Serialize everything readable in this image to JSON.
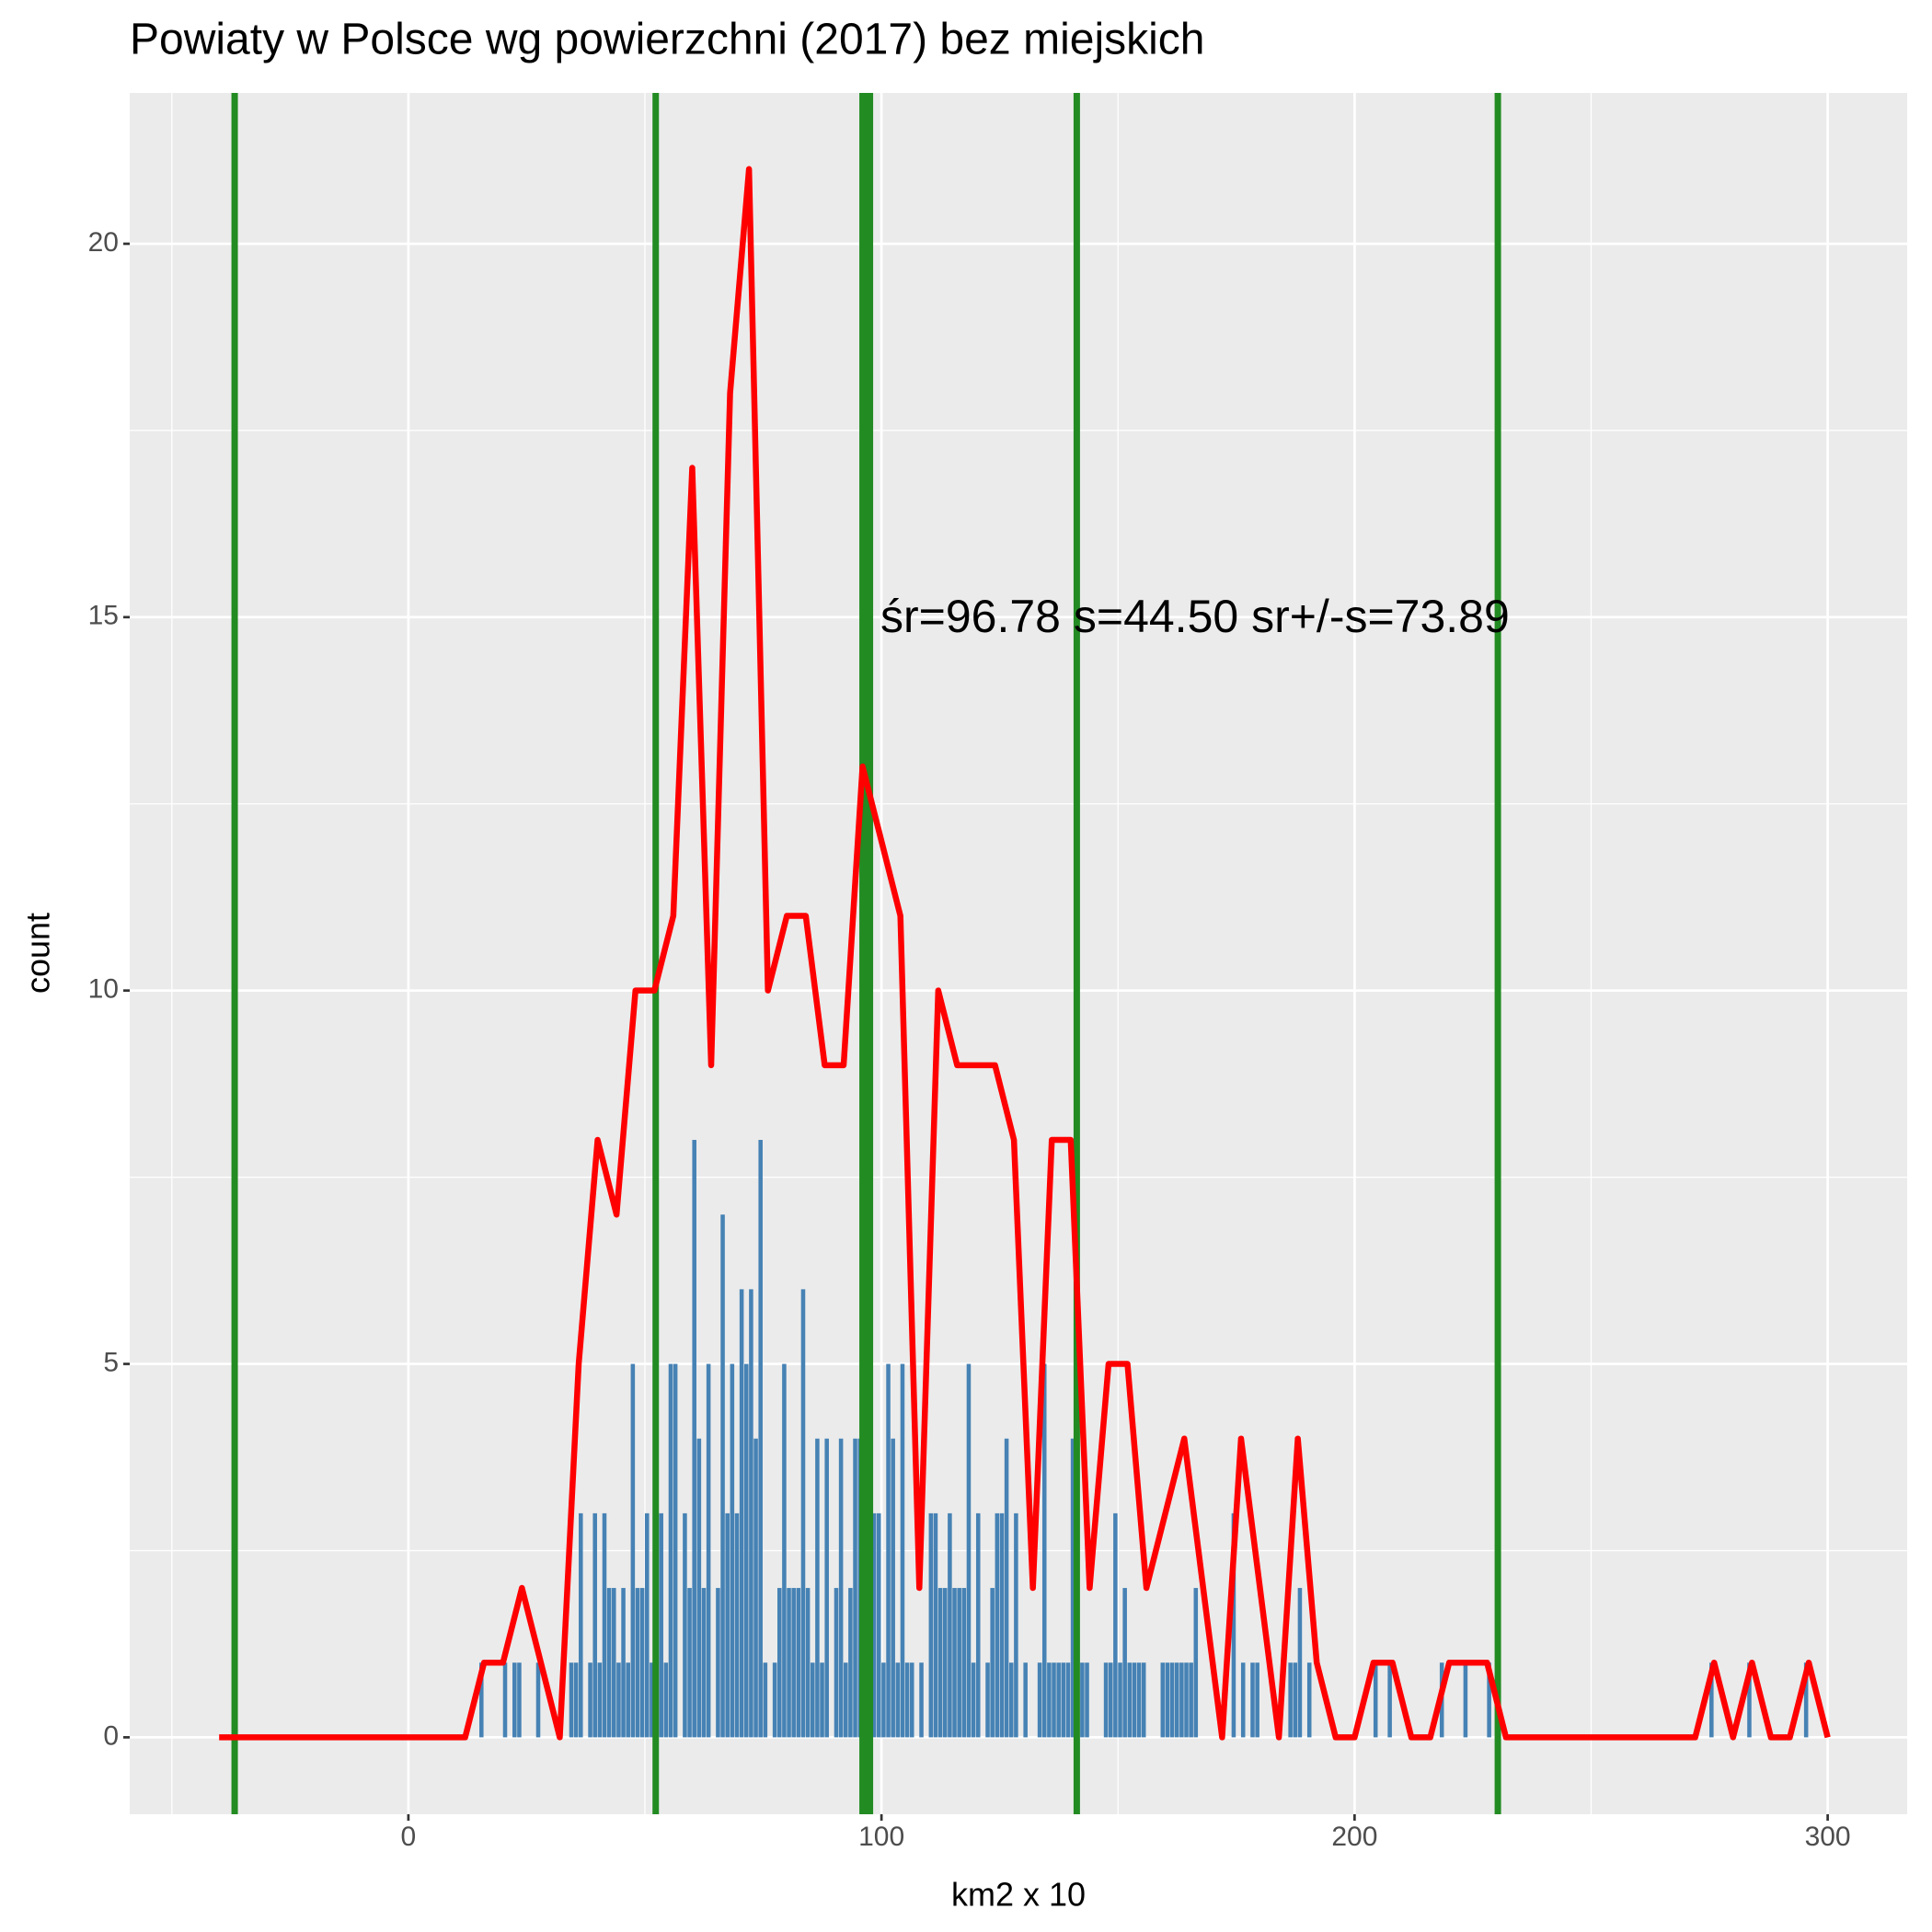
{
  "chart_data": {
    "type": "histogram",
    "title": "Powiaty w Polsce wg powierzchni (2017) bez miejskich",
    "x_label": "km2 x 10",
    "y_label": "count",
    "annotation": "śr=96.78 s=44.50 sr+/-s=73.89",
    "color": "#4682b4",
    "bins": [
      14,
      15,
      16,
      17,
      18,
      19,
      20,
      21,
      22,
      23,
      24,
      25,
      26,
      27,
      28,
      29,
      30,
      31,
      32,
      33,
      34,
      35,
      36,
      37,
      38,
      39,
      40,
      41,
      42,
      43,
      44,
      45,
      46,
      47,
      48,
      49,
      50,
      51,
      52,
      53,
      54,
      55,
      56,
      57,
      58,
      59,
      60,
      61,
      62,
      63,
      64,
      65,
      66,
      67,
      68,
      69,
      70,
      71,
      72,
      73,
      74,
      75,
      76,
      77,
      78,
      79,
      80,
      81,
      82,
      83,
      84,
      85,
      86,
      87,
      88,
      89,
      90,
      91,
      92,
      93,
      94,
      95,
      96,
      97,
      98,
      99,
      100,
      101,
      102,
      103,
      104,
      105,
      106,
      107,
      108,
      109,
      110,
      111,
      112,
      113,
      114,
      115,
      116,
      117,
      118,
      119,
      120,
      121,
      122,
      123,
      124,
      125,
      126,
      127,
      128,
      129,
      130,
      131,
      132,
      133,
      134,
      135,
      136,
      137,
      138,
      139,
      140,
      141,
      142,
      143,
      144,
      145,
      146,
      147,
      148,
      149,
      150,
      151,
      152,
      153,
      154,
      155,
      156,
      157,
      158,
      159,
      160,
      161,
      162,
      163,
      164,
      165,
      166,
      167,
      168,
      169,
      170,
      171,
      172,
      173,
      174,
      175,
      176,
      177,
      178,
      179,
      180,
      181,
      182,
      183,
      184,
      185,
      186,
      187,
      188,
      189,
      190,
      191,
      192,
      193,
      194,
      195,
      196,
      197,
      198,
      199,
      200,
      201,
      202,
      203,
      204,
      205,
      206,
      207,
      208,
      209,
      210,
      211,
      212,
      213,
      214,
      215,
      216,
      217,
      218,
      219,
      220,
      221,
      222,
      223,
      224,
      225,
      226,
      227,
      228,
      229,
      230,
      231,
      232,
      233,
      234,
      235,
      236,
      237,
      238,
      239,
      240,
      241,
      242,
      243,
      244,
      245,
      246,
      247,
      248,
      249,
      250,
      251,
      252,
      253,
      254,
      255,
      256,
      257,
      258,
      259,
      260,
      261,
      262,
      263,
      264,
      265,
      266,
      267,
      268,
      269,
      270,
      271,
      272,
      273,
      274,
      275,
      276,
      277,
      278,
      279,
      280,
      281,
      282,
      283,
      284,
      285,
      286,
      287,
      288,
      289,
      290,
      291,
      292,
      293,
      294,
      295,
      296,
      297,
      298
    ],
    "counts": [
      0,
      1,
      0,
      0,
      0,
      0,
      1,
      0,
      1,
      1,
      0,
      0,
      0,
      1,
      0,
      0,
      0,
      0,
      0,
      0,
      1,
      1,
      3,
      0,
      1,
      3,
      1,
      3,
      2,
      2,
      1,
      2,
      1,
      5,
      2,
      2,
      3,
      1,
      3,
      3,
      1,
      5,
      5,
      0,
      3,
      2,
      8,
      4,
      2,
      5,
      0,
      2,
      7,
      3,
      5,
      3,
      6,
      5,
      6,
      4,
      8,
      1,
      0,
      1,
      2,
      5,
      2,
      2,
      2,
      6,
      2,
      1,
      4,
      1,
      4,
      0,
      2,
      4,
      1,
      2,
      4,
      4,
      2,
      3,
      3,
      3,
      1,
      5,
      4,
      1,
      5,
      1,
      1,
      0,
      1,
      0,
      3,
      3,
      2,
      2,
      3,
      2,
      2,
      2,
      5,
      1,
      3,
      0,
      1,
      2,
      3,
      3,
      4,
      1,
      3,
      0,
      1,
      0,
      0,
      1,
      5,
      1,
      1,
      1,
      1,
      1,
      4,
      2,
      1,
      1,
      0,
      0,
      0,
      1,
      1,
      3,
      1,
      2,
      1,
      1,
      1,
      1,
      0,
      0,
      0,
      1,
      1,
      1,
      1,
      1,
      1,
      1,
      2,
      0,
      0,
      0,
      0,
      0,
      0,
      0,
      3,
      0,
      1,
      0,
      1,
      1,
      0,
      0,
      0,
      0,
      0,
      0,
      1,
      1,
      2,
      0,
      1,
      0,
      0,
      0,
      0,
      0,
      0,
      0,
      0,
      0,
      0,
      0,
      0,
      0,
      1,
      0,
      0,
      1,
      0,
      0,
      0,
      0,
      0,
      0,
      0,
      0,
      0,
      0,
      1,
      0,
      0,
      0,
      0,
      1,
      0,
      0,
      0,
      0,
      1,
      0,
      0,
      0,
      0,
      0,
      0,
      0,
      0,
      0,
      0,
      0,
      0,
      0,
      0,
      0,
      0,
      0,
      0,
      0,
      0,
      0,
      0,
      0,
      0,
      0,
      0,
      0,
      0,
      0,
      0,
      0,
      0,
      0,
      0,
      0,
      0,
      0,
      0,
      0,
      0,
      0,
      0,
      0,
      0,
      0,
      0,
      1,
      0,
      0,
      0,
      0,
      0,
      0,
      0,
      1,
      0,
      0,
      0,
      0,
      0,
      0,
      0,
      0,
      0,
      0,
      0,
      1,
      0,
      0
    ],
    "overlay": {
      "type": "line",
      "color": "#ff0000",
      "x": [
        -40,
        -36,
        -32,
        -28,
        -24,
        -20,
        -16,
        -12,
        -8,
        -4,
        0,
        4,
        8,
        12,
        16,
        20,
        24,
        28,
        32,
        36,
        40,
        44,
        48,
        52,
        56,
        60,
        64,
        68,
        72,
        76,
        80,
        84,
        88,
        92,
        96,
        100,
        104,
        108,
        112,
        116,
        120,
        124,
        128,
        132,
        136,
        140,
        144,
        148,
        152,
        156,
        160,
        164,
        168,
        172,
        176,
        180,
        184,
        188,
        192,
        196,
        200,
        204,
        208,
        212,
        216,
        220,
        224,
        228,
        232,
        236,
        240,
        244,
        248,
        252,
        256,
        260,
        264,
        268,
        272,
        276,
        280,
        284,
        288,
        292,
        296,
        300
      ],
      "values": [
        0,
        0,
        0,
        0,
        0,
        0,
        0,
        0,
        0,
        0,
        0,
        0,
        0,
        0,
        1,
        1,
        2,
        1,
        0,
        5,
        8,
        7,
        10,
        10,
        11,
        17,
        9,
        18,
        21,
        10,
        11,
        11,
        9,
        9,
        13,
        12,
        11,
        2,
        10,
        9,
        9,
        9,
        8,
        2,
        8,
        8,
        2,
        5,
        5,
        2,
        3,
        4,
        2,
        0,
        4,
        2,
        0,
        4,
        1,
        0,
        0,
        1,
        1,
        0,
        0,
        1,
        1,
        1,
        0,
        0,
        0,
        0,
        0,
        0,
        0,
        0,
        0,
        0,
        0,
        1,
        0,
        1,
        0,
        0,
        1,
        0
      ]
    },
    "vlines": [
      -36.72,
      52.28,
      141.28,
      230.28
    ],
    "mean_line": 96.78,
    "vline_color": "#228b22",
    "xlim": [
      -58.9,
      316.8
    ],
    "ylim": [
      -1.03,
      22.02
    ],
    "xticks": [
      0,
      100,
      200,
      300
    ],
    "xminor": [
      -50,
      50,
      150,
      250
    ],
    "yticks": [
      0,
      5,
      10,
      15,
      20
    ],
    "yminor": [
      2.5,
      7.5,
      12.5,
      17.5
    ],
    "grid": true
  }
}
